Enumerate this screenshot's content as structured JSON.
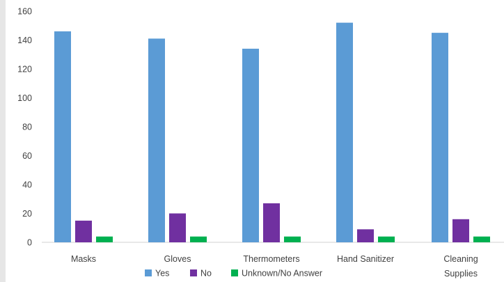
{
  "chart_data": {
    "type": "bar",
    "categories": [
      "Masks",
      "Gloves",
      "Thermometers",
      "Hand Sanitizer",
      "Cleaning Supplies"
    ],
    "category_lines": [
      [
        "Masks"
      ],
      [
        "Gloves"
      ],
      [
        "Thermometers"
      ],
      [
        "Hand Sanitizer"
      ],
      [
        "Cleaning",
        "Supplies"
      ]
    ],
    "series": [
      {
        "name": "Yes",
        "color": "#5b9bd5",
        "values": [
          146,
          141,
          134,
          152,
          145
        ]
      },
      {
        "name": "No",
        "color": "#7030a0",
        "values": [
          15,
          20,
          27,
          9,
          16
        ]
      },
      {
        "name": "Unknown/No Answer",
        "color": "#00b050",
        "values": [
          4,
          4,
          4,
          4,
          4
        ]
      }
    ],
    "ylim": [
      0,
      160
    ],
    "yticks": [
      0,
      20,
      40,
      60,
      80,
      100,
      120,
      140,
      160
    ],
    "grid": false,
    "legend_position": "bottom",
    "title": "",
    "xlabel": "",
    "ylabel": ""
  }
}
